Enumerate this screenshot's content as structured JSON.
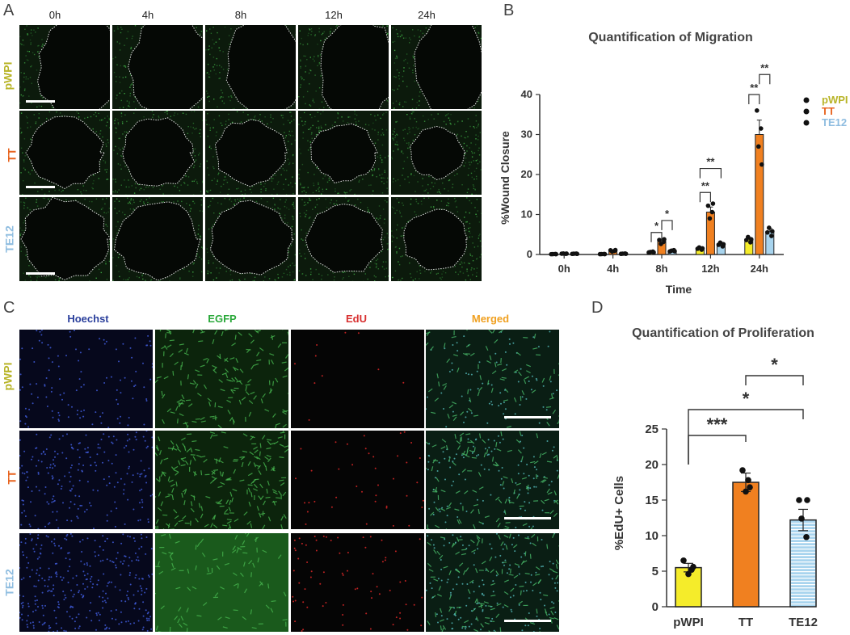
{
  "panel_a": {
    "letter": "A",
    "columns": [
      "0h",
      "4h",
      "8h",
      "12h",
      "24h"
    ],
    "rows": [
      "pWPI",
      "TT",
      "TE12"
    ],
    "row_colors": [
      "#b8b427",
      "#e8641f",
      "#8fbde0"
    ]
  },
  "panel_b": {
    "letter": "B"
  },
  "panel_c": {
    "letter": "C",
    "columns": [
      "Hoechst",
      "EGFP",
      "EdU",
      "Merged"
    ],
    "column_colors": [
      "#2a3f9c",
      "#2aa83a",
      "#d83030",
      "#f0a020"
    ],
    "rows": [
      "pWPI",
      "TT",
      "TE12"
    ],
    "row_colors": [
      "#b8b427",
      "#e8641f",
      "#8fbde0"
    ]
  },
  "panel_d": {
    "letter": "D"
  },
  "chart_data": [
    {
      "type": "bar",
      "title": "Quantification of Migration",
      "xlabel": "Time",
      "ylabel": "%Wound  Closure",
      "categories": [
        "0h",
        "4h",
        "8h",
        "12h",
        "24h"
      ],
      "ylim": [
        0,
        40
      ],
      "yticks": [
        "0",
        "10",
        "20",
        "30",
        "40"
      ],
      "legend_position": "right",
      "series": [
        {
          "name": "pWPI",
          "color": "#f5ec2a",
          "values": [
            0.1,
            0.1,
            0.6,
            1.6,
            3.8
          ]
        },
        {
          "name": "TT",
          "color": "#f08020",
          "values": [
            0.2,
            1.0,
            3.3,
            10.6,
            30.0
          ]
        },
        {
          "name": "TE12",
          "color": "#a8d4ee",
          "values": [
            0.2,
            0.2,
            0.9,
            2.7,
            5.8
          ]
        }
      ],
      "significance": [
        "*",
        "*",
        "**",
        "**",
        "**",
        "**"
      ]
    },
    {
      "type": "bar",
      "title": "Quantification of Proliferation",
      "ylabel": "%EdU+ Cells",
      "categories": [
        "pWPI",
        "TT",
        "TE12"
      ],
      "values": [
        5.5,
        17.5,
        12.2
      ],
      "colors": [
        "#f5ec2a",
        "#f08020",
        "#a8d4ee"
      ],
      "ylim": [
        0,
        25
      ],
      "yticks": [
        "0",
        "5",
        "10",
        "15",
        "20",
        "25"
      ],
      "significance": [
        "***",
        "*",
        "*"
      ]
    }
  ]
}
